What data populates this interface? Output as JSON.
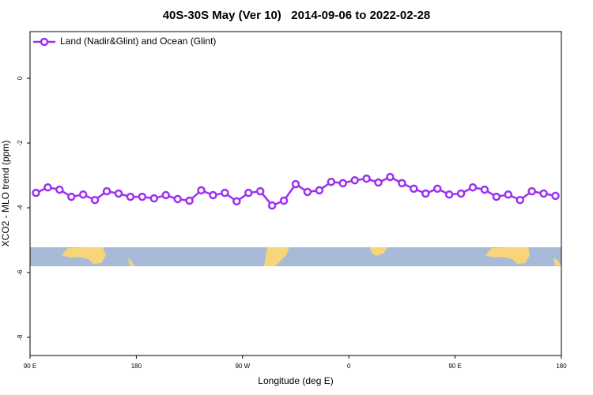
{
  "chart_data": {
    "type": "line",
    "title": "40S-30S May (Ver 10)   2014-09-06 to 2022-02-28",
    "x_label": "Longitude (deg E)",
    "y_label": "XCO2 - MLO trend (ppm)",
    "x": [
      95,
      105,
      115,
      125,
      135,
      145,
      155,
      165,
      175,
      185,
      195,
      205,
      215,
      225,
      235,
      245,
      255,
      265,
      275,
      285,
      295,
      305,
      315,
      325,
      335,
      345,
      355,
      365,
      375,
      385,
      395,
      405,
      415,
      425,
      435,
      445,
      455,
      465,
      475,
      485,
      495,
      505,
      515,
      525,
      535
    ],
    "series": [
      {
        "name": "Land (Nadir&Glint) and Ocean (Glint)",
        "color": "#9b30f0",
        "values": [
          -3.54,
          -3.37,
          -3.44,
          -3.66,
          -3.59,
          -3.76,
          -3.49,
          -3.56,
          -3.66,
          -3.66,
          -3.71,
          -3.61,
          -3.73,
          -3.78,
          -3.46,
          -3.61,
          -3.54,
          -3.8,
          -3.54,
          -3.49,
          -3.93,
          -3.78,
          -3.27,
          -3.51,
          -3.46,
          -3.2,
          -3.24,
          -3.15,
          -3.1,
          -3.22,
          -3.05,
          -3.24,
          -3.41,
          -3.56,
          -3.41,
          -3.59,
          -3.56,
          -3.37,
          -3.44,
          -3.66,
          -3.59,
          -3.76,
          -3.49,
          -3.56,
          -3.63
        ]
      }
    ],
    "xlim": [
      90,
      540
    ],
    "xticks": [
      {
        "value": 90,
        "label": "90 E"
      },
      {
        "value": 180,
        "label": "180"
      },
      {
        "value": 270,
        "label": "90 W"
      },
      {
        "value": 360,
        "label": "0"
      },
      {
        "value": 450,
        "label": "90 E"
      },
      {
        "value": 540,
        "label": "180"
      }
    ],
    "ylim": [
      -8.56,
      1.44
    ],
    "yticks": [
      0,
      -2,
      -4,
      -6,
      -8
    ],
    "legend": "top-left"
  }
}
